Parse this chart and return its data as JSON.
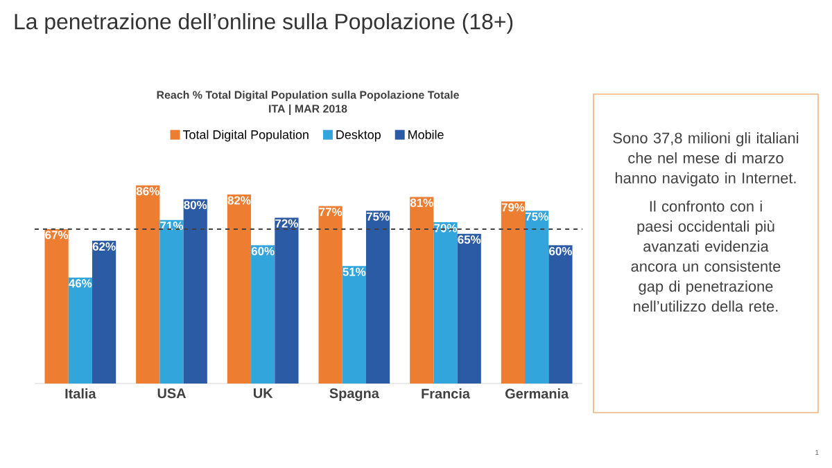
{
  "chart_data": {
    "type": "bar",
    "title": "La penetrazione dell’online sulla Popolazione (18+)",
    "subtitle": "Reach % Total Digital Population sulla Popolazione Totale",
    "categories": [
      "Italia",
      "USA",
      "UK",
      "Spagna",
      "Francia",
      "Germania"
    ],
    "series": [
      {
        "name": "Total Digital Population",
        "color": "#ed7d31",
        "values": [
          67,
          86,
          82,
          77,
          81,
          79
        ],
        "value_labels": [
          "67%",
          "86%",
          "82%",
          "77%",
          "81%",
          "79%"
        ]
      },
      {
        "name": "Desktop",
        "color": "#31a5dc",
        "values": [
          46,
          71,
          60,
          51,
          70,
          75
        ],
        "value_labels": [
          "46%",
          "71%",
          "60%",
          "51%",
          "70%",
          "75%"
        ]
      },
      {
        "name": "Mobile",
        "color": "#2c5ba6",
        "values": [
          62,
          80,
          72,
          75,
          65,
          60
        ],
        "value_labels": [
          "62%",
          "80%",
          "72%",
          "75%",
          "65%",
          "60%"
        ]
      }
    ],
    "tick_labels": "x",
    "legend": "top",
    "ref_lines": [
      {
        "axis": "y",
        "value": 67,
        "line_style": "dashed",
        "color": "#404040"
      }
    ],
    "annotations": [
      "ITA | MAR 2018",
      "Sono 37,8 milioni gli italiani che nel mese di marzo hanno navigato in Internet.",
      "Il confronto con i paesi occidentali più avanzati evidenzia ancora un consistente gap di penetrazione nell’utilizzo della rete.",
      "1"
    ]
  }
}
